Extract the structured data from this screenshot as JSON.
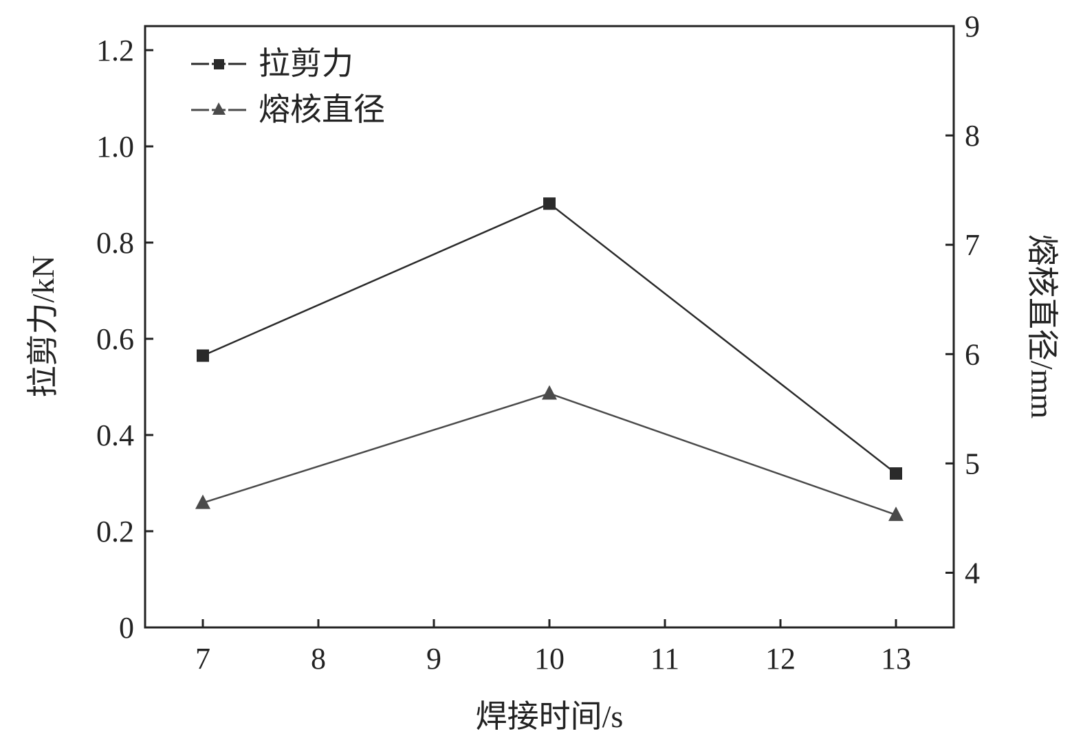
{
  "chart_data": {
    "type": "line",
    "title": "",
    "xlabel": "焊接时间/s",
    "ylabel": "拉剪力/kN",
    "y2label": "熔核直径/mm",
    "xlim": [
      6.5,
      13.5
    ],
    "ylim": [
      0,
      1.25
    ],
    "y2lim": [
      3.5,
      9
    ],
    "xticks": [
      7,
      8,
      9,
      10,
      11,
      12,
      13
    ],
    "yticks": [
      "0",
      "0.2",
      "0.4",
      "0.6",
      "0.8",
      "1.0",
      "1.2"
    ],
    "y2ticks": [
      "4",
      "5",
      "6",
      "7",
      "8",
      "9"
    ],
    "grid": false,
    "legend_position": "top-left",
    "x": [
      7,
      10,
      13
    ],
    "series": [
      {
        "name": "拉剪力",
        "axis": "left",
        "marker": "square",
        "color": "#2a2a2a",
        "values": [
          0.565,
          0.881,
          0.32
        ]
      },
      {
        "name": "熔核直径",
        "axis": "right",
        "marker": "triangle",
        "color": "#4a4a4a",
        "values": [
          4.64,
          5.64,
          4.53
        ]
      }
    ]
  }
}
